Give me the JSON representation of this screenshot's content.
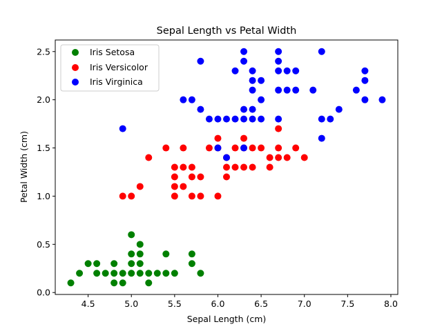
{
  "chart_data": {
    "type": "scatter",
    "title": "Sepal Length vs Petal Width",
    "xlabel": "Sepal Length (cm)",
    "ylabel": "Petal Width (cm)",
    "xlim": [
      4.12,
      8.08
    ],
    "ylim": [
      -0.02,
      2.62
    ],
    "xticks": [
      4.5,
      5.0,
      5.5,
      6.0,
      6.5,
      7.0,
      7.5,
      8.0
    ],
    "xtick_labels": [
      "4.5",
      "5.0",
      "5.5",
      "6.0",
      "6.5",
      "7.0",
      "7.5",
      "8.0"
    ],
    "yticks": [
      0.0,
      0.5,
      1.0,
      1.5,
      2.0,
      2.5
    ],
    "ytick_labels": [
      "0.0",
      "0.5",
      "1.0",
      "1.5",
      "2.0",
      "2.5"
    ],
    "grid": false,
    "legend_position": "upper-left",
    "series": [
      {
        "name": "Iris Setosa",
        "color": "#008000",
        "points": [
          [
            4.3,
            0.1
          ],
          [
            4.4,
            0.2
          ],
          [
            4.5,
            0.3
          ],
          [
            4.6,
            0.2
          ],
          [
            4.6,
            0.3
          ],
          [
            4.7,
            0.2
          ],
          [
            4.8,
            0.1
          ],
          [
            4.8,
            0.2
          ],
          [
            4.8,
            0.3
          ],
          [
            4.9,
            0.1
          ],
          [
            4.9,
            0.2
          ],
          [
            5.0,
            0.2
          ],
          [
            5.0,
            0.3
          ],
          [
            5.0,
            0.4
          ],
          [
            5.0,
            0.6
          ],
          [
            5.1,
            0.2
          ],
          [
            5.1,
            0.3
          ],
          [
            5.1,
            0.4
          ],
          [
            5.1,
            0.5
          ],
          [
            5.2,
            0.1
          ],
          [
            5.2,
            0.2
          ],
          [
            5.3,
            0.2
          ],
          [
            5.4,
            0.2
          ],
          [
            5.4,
            0.4
          ],
          [
            5.5,
            0.2
          ],
          [
            5.7,
            0.3
          ],
          [
            5.7,
            0.4
          ],
          [
            5.8,
            0.2
          ]
        ]
      },
      {
        "name": "Iris Versicolor",
        "color": "#ff0000",
        "points": [
          [
            4.9,
            1.0
          ],
          [
            5.0,
            1.0
          ],
          [
            5.1,
            1.1
          ],
          [
            5.2,
            1.4
          ],
          [
            5.4,
            1.5
          ],
          [
            5.5,
            1.0
          ],
          [
            5.5,
            1.1
          ],
          [
            5.5,
            1.2
          ],
          [
            5.5,
            1.3
          ],
          [
            5.6,
            1.1
          ],
          [
            5.6,
            1.3
          ],
          [
            5.6,
            1.5
          ],
          [
            5.7,
            1.0
          ],
          [
            5.7,
            1.2
          ],
          [
            5.7,
            1.3
          ],
          [
            5.8,
            1.0
          ],
          [
            5.8,
            1.2
          ],
          [
            5.9,
            1.5
          ],
          [
            6.0,
            1.0
          ],
          [
            6.0,
            1.5
          ],
          [
            6.0,
            1.6
          ],
          [
            6.1,
            1.2
          ],
          [
            6.1,
            1.3
          ],
          [
            6.1,
            1.4
          ],
          [
            6.2,
            1.3
          ],
          [
            6.2,
            1.5
          ],
          [
            6.3,
            1.3
          ],
          [
            6.3,
            1.5
          ],
          [
            6.3,
            1.6
          ],
          [
            6.4,
            1.3
          ],
          [
            6.4,
            1.5
          ],
          [
            6.5,
            1.5
          ],
          [
            6.6,
            1.3
          ],
          [
            6.6,
            1.4
          ],
          [
            6.7,
            1.4
          ],
          [
            6.7,
            1.5
          ],
          [
            6.7,
            1.7
          ],
          [
            6.8,
            1.4
          ],
          [
            6.9,
            1.5
          ],
          [
            7.0,
            1.4
          ]
        ]
      },
      {
        "name": "Iris Virginica",
        "color": "#0000ff",
        "points": [
          [
            4.9,
            1.7
          ],
          [
            5.6,
            2.0
          ],
          [
            5.7,
            2.0
          ],
          [
            5.8,
            1.9
          ],
          [
            5.8,
            2.4
          ],
          [
            5.9,
            1.8
          ],
          [
            6.0,
            1.5
          ],
          [
            6.0,
            1.8
          ],
          [
            6.1,
            1.4
          ],
          [
            6.1,
            1.8
          ],
          [
            6.2,
            1.8
          ],
          [
            6.2,
            2.3
          ],
          [
            6.3,
            1.5
          ],
          [
            6.3,
            1.8
          ],
          [
            6.3,
            1.9
          ],
          [
            6.3,
            2.4
          ],
          [
            6.3,
            2.5
          ],
          [
            6.4,
            1.8
          ],
          [
            6.4,
            1.9
          ],
          [
            6.4,
            2.1
          ],
          [
            6.4,
            2.2
          ],
          [
            6.4,
            2.3
          ],
          [
            6.5,
            1.8
          ],
          [
            6.5,
            2.0
          ],
          [
            6.5,
            2.2
          ],
          [
            6.7,
            1.8
          ],
          [
            6.7,
            2.1
          ],
          [
            6.7,
            2.3
          ],
          [
            6.7,
            2.4
          ],
          [
            6.7,
            2.5
          ],
          [
            6.8,
            2.1
          ],
          [
            6.8,
            2.3
          ],
          [
            6.9,
            2.1
          ],
          [
            6.9,
            2.3
          ],
          [
            7.1,
            2.1
          ],
          [
            7.2,
            1.6
          ],
          [
            7.2,
            1.8
          ],
          [
            7.2,
            2.5
          ],
          [
            7.3,
            1.8
          ],
          [
            7.4,
            1.9
          ],
          [
            7.6,
            2.1
          ],
          [
            7.7,
            2.0
          ],
          [
            7.7,
            2.2
          ],
          [
            7.7,
            2.3
          ],
          [
            7.9,
            2.0
          ]
        ]
      }
    ]
  }
}
